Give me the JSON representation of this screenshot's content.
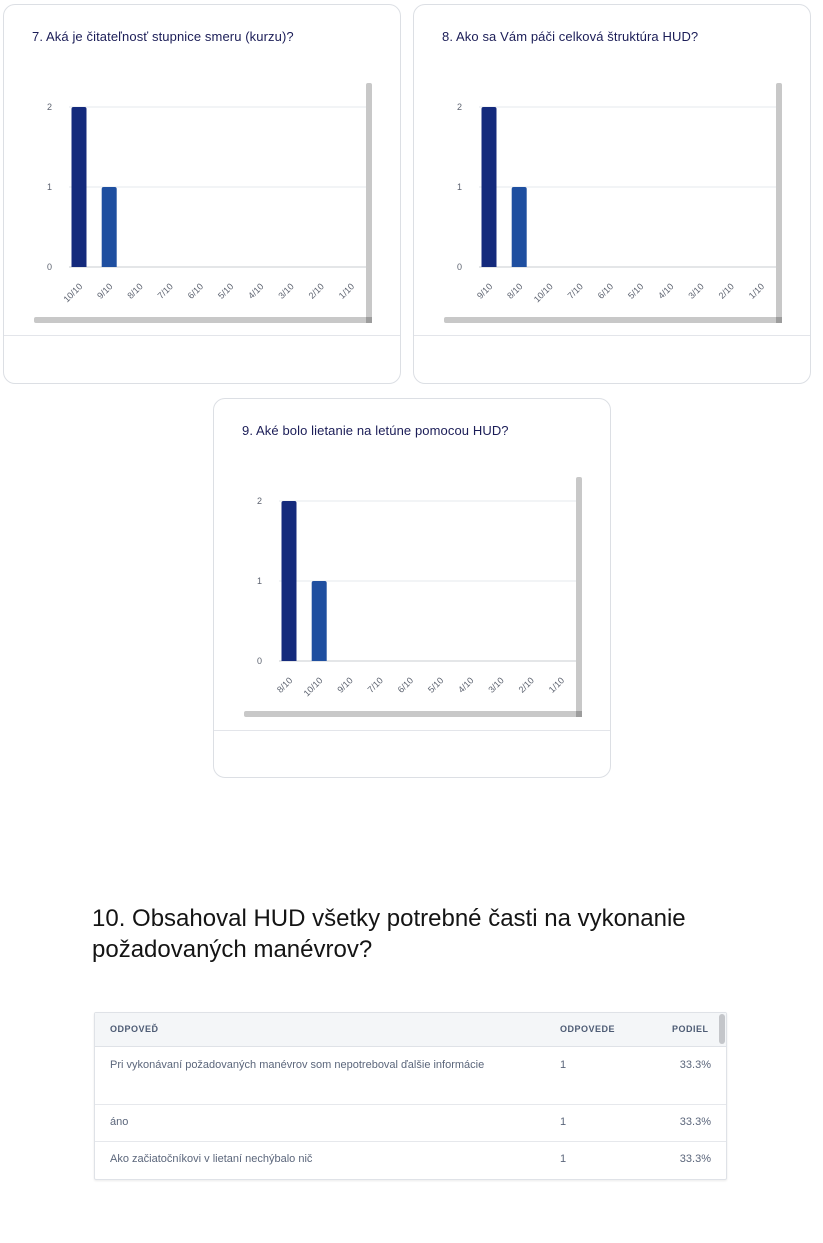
{
  "charts": [
    {
      "title": "7. Aká je čitateľnosť stupnice smeru (kurzu)?",
      "chart_data": {
        "type": "bar",
        "categories": [
          "10/10",
          "9/10",
          "8/10",
          "7/10",
          "6/10",
          "5/10",
          "4/10",
          "3/10",
          "2/10",
          "1/10"
        ],
        "values": [
          2,
          1,
          0,
          0,
          0,
          0,
          0,
          0,
          0,
          0
        ],
        "yticks": [
          "0",
          "1",
          "2"
        ],
        "ylim": [
          0,
          2
        ],
        "colors": [
          "#142a7c",
          "#1f4fa0"
        ],
        "grid": true
      }
    },
    {
      "title": "8. Ako sa Vám páči celková štruktúra HUD?",
      "chart_data": {
        "type": "bar",
        "categories": [
          "9/10",
          "8/10",
          "10/10",
          "7/10",
          "6/10",
          "5/10",
          "4/10",
          "3/10",
          "2/10",
          "1/10"
        ],
        "values": [
          2,
          1,
          0,
          0,
          0,
          0,
          0,
          0,
          0,
          0
        ],
        "yticks": [
          "0",
          "1",
          "2"
        ],
        "ylim": [
          0,
          2
        ],
        "colors": [
          "#142a7c",
          "#1f4fa0"
        ],
        "grid": true
      }
    },
    {
      "title": "9. Aké bolo lietanie na letúne pomocou HUD?",
      "chart_data": {
        "type": "bar",
        "categories": [
          "8/10",
          "10/10",
          "9/10",
          "7/10",
          "6/10",
          "5/10",
          "4/10",
          "3/10",
          "2/10",
          "1/10"
        ],
        "values": [
          2,
          1,
          0,
          0,
          0,
          0,
          0,
          0,
          0,
          0
        ],
        "yticks": [
          "0",
          "1",
          "2"
        ],
        "ylim": [
          0,
          2
        ],
        "colors": [
          "#142a7c",
          "#1f4fa0"
        ],
        "grid": true
      }
    }
  ],
  "question10": {
    "heading": "10. Obsahoval HUD všetky potrebné časti na vykonanie požadovaných manévrov?",
    "columns": {
      "answer": "ODPOVEĎ",
      "responses": "ODPOVEDE",
      "share": "PODIEL"
    },
    "rows": [
      {
        "answer": "Pri vykonávaní požadovaných manévrov som nepotreboval ďalšie informácie",
        "responses": "1",
        "share": "33.3%"
      },
      {
        "answer": "áno",
        "responses": "1",
        "share": "33.3%"
      },
      {
        "answer": "Ako začiatočníkovi v lietaní nechýbalo nič",
        "responses": "1",
        "share": "33.3%"
      }
    ]
  }
}
